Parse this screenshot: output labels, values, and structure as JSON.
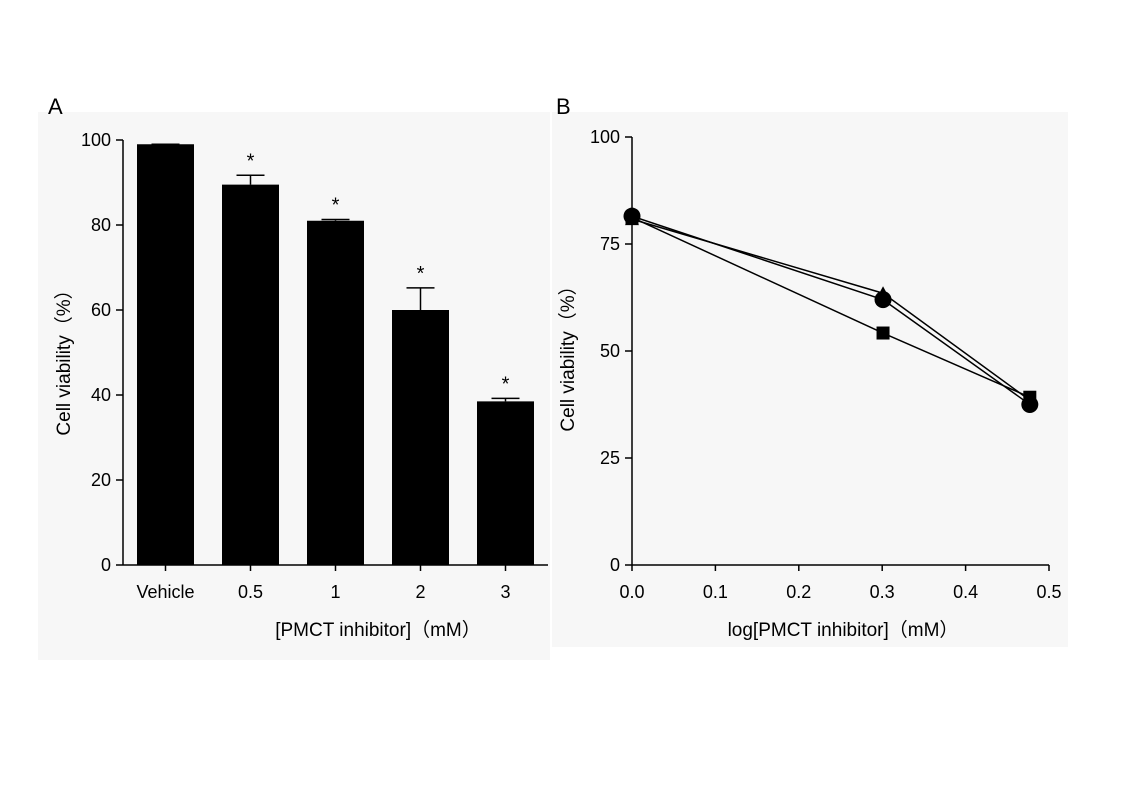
{
  "panels": [
    {
      "letter": "A"
    },
    {
      "letter": "B"
    }
  ],
  "chart_data": [
    {
      "type": "bar",
      "panel": "A",
      "categories": [
        "Vehicle",
        "0.5",
        "1",
        "2",
        "3"
      ],
      "values": [
        99,
        89.5,
        81,
        60,
        38.5
      ],
      "errors": [
        0,
        2.2,
        0.3,
        5.2,
        0.7
      ],
      "significance": [
        "",
        "*",
        "*",
        "*",
        "*"
      ],
      "xlabel": "[PMCT inhibitor]（mM）",
      "ylabel": "Cell viability（%）",
      "ylim": [
        0,
        100
      ],
      "yticks": [
        0,
        20,
        40,
        60,
        80,
        100
      ],
      "bar_color": "#000000",
      "background_color": "#f7f7f7"
    },
    {
      "type": "line",
      "panel": "B",
      "series": [
        {
          "marker": "triangle",
          "x": [
            0.0,
            0.301,
            0.477
          ],
          "y": [
            80.8,
            63.5,
            38.5
          ]
        },
        {
          "marker": "square",
          "x": [
            0.0,
            0.301,
            0.477
          ],
          "y": [
            81.2,
            54.2,
            39.2
          ]
        },
        {
          "marker": "circle",
          "x": [
            0.0,
            0.301,
            0.477
          ],
          "y": [
            81.5,
            62.0,
            37.5
          ]
        }
      ],
      "xlabel": "log[PMCT inhibitor]（mM）",
      "ylabel": "Cell viability（%）",
      "xlim": [
        0.0,
        0.5
      ],
      "ylim": [
        0,
        100
      ],
      "xticks": [
        "0.0",
        "0.1",
        "0.2",
        "0.3",
        "0.4",
        "0.5"
      ],
      "yticks": [
        "0",
        "25",
        "50",
        "75",
        "100"
      ],
      "line_color": "#000000",
      "background_color": "#f7f7f7"
    }
  ]
}
